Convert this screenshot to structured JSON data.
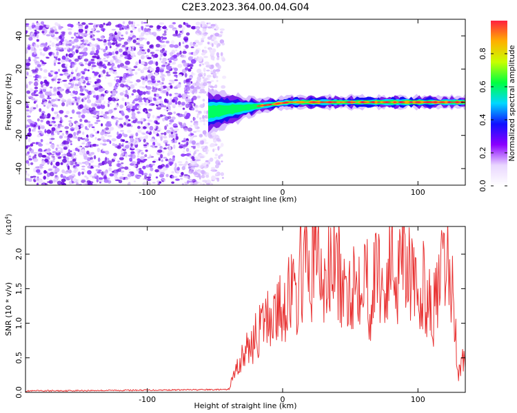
{
  "title": "C2E3.2023.364.00.04.G04",
  "colors": {
    "snr_line": "#e83030",
    "scatter_purple": "#7a1fe8",
    "axis": "#000000"
  },
  "chart_data": [
    {
      "type": "heatmap",
      "xlabel": "Height of straight line (km)",
      "ylabel": "Frequency (Hz)",
      "xlim": [
        -190,
        135
      ],
      "ylim": [
        -50,
        50
      ],
      "xticks": [
        -100,
        0,
        100
      ],
      "yticks": [
        -40,
        -20,
        0,
        20,
        40
      ],
      "colorbar": {
        "label": "Normalized spectral amplitude",
        "range": [
          0,
          1
        ],
        "ticks": [
          "0.0",
          "0.2",
          "0.4",
          "0.6",
          "0.8"
        ],
        "colormap": [
          "#ffffff",
          "#e9d6ff",
          "#8a00ff",
          "#1010ff",
          "#00d8ff",
          "#00ff40",
          "#c8ff00",
          "#ffb000",
          "#ff2040"
        ]
      },
      "regions": [
        {
          "name": "noise",
          "x_range": [
            -190,
            -50
          ],
          "y_range": [
            -50,
            48
          ],
          "level": "low"
        },
        {
          "name": "signal_band",
          "x_range": [
            -55,
            135
          ],
          "center_frequency": 0,
          "half_width": [
            8,
            2
          ],
          "level": "high"
        }
      ]
    },
    {
      "type": "line",
      "xlabel": "Height of straight line (km)",
      "ylabel": "SNR (10 * v/v)",
      "y_multiplier": "(x10",
      "y_multiplier_exp": "4",
      "y_multiplier_close": ")",
      "xlim": [
        -190,
        135
      ],
      "ylim": [
        0,
        2.4
      ],
      "xticks": [
        -100,
        0,
        100
      ],
      "yticks": [
        "0.0",
        "0.5",
        "1.0",
        "1.5",
        "2.0"
      ],
      "series": [
        {
          "x": [
            -190,
            -40,
            -35,
            -30,
            -20,
            -10,
            0,
            5,
            10,
            15,
            20,
            25,
            30,
            35,
            40,
            45,
            50,
            55,
            60,
            65,
            70,
            75,
            80,
            85,
            88,
            90,
            95,
            100,
            105,
            110,
            115,
            120,
            125,
            128,
            130,
            133
          ],
          "y": [
            0.02,
            0.04,
            0.3,
            0.5,
            0.8,
            1.1,
            1.2,
            1.5,
            1.3,
            1.9,
            1.6,
            2.15,
            1.4,
            1.8,
            1.9,
            1.3,
            1.6,
            1.6,
            2.0,
            1.2,
            1.9,
            1.4,
            1.9,
            1.7,
            2.35,
            2.2,
            1.7,
            1.2,
            1.6,
            1.1,
            1.4,
            1.85,
            1.6,
            0.8,
            0.25,
            0.5
          ]
        }
      ]
    }
  ]
}
